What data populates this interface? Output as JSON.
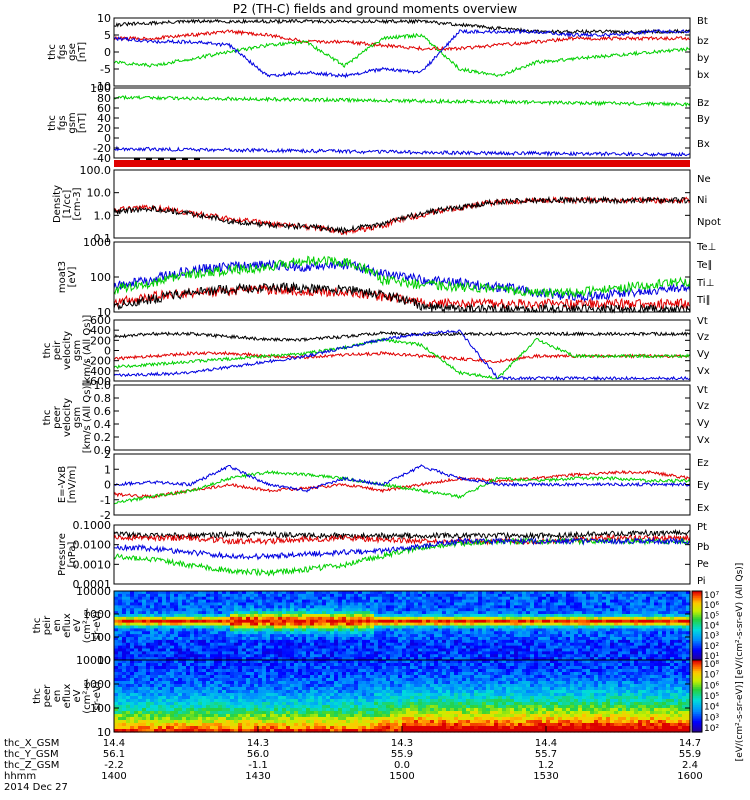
{
  "title": "P2 (TH-C) fields and ground moments overview",
  "colors": {
    "black": "#000000",
    "red": "#e00000",
    "green": "#00d000",
    "blue": "#0000e0"
  },
  "chart_data": [
    {
      "type": "line",
      "ylabel": [
        "thc",
        "fgs",
        "gse",
        "[nT]"
      ],
      "ylim": [
        -10,
        10
      ],
      "ticks": [
        "10",
        "5",
        "0",
        "-5",
        "-10"
      ],
      "series": [
        {
          "name": "Bt",
          "color": "black",
          "values": [
            8,
            8.5,
            9,
            9,
            9,
            9,
            9,
            9,
            9,
            8,
            7,
            6,
            6,
            6,
            6,
            6
          ]
        },
        {
          "name": "bz",
          "color": "red",
          "values": [
            4,
            4,
            5,
            6,
            5,
            3,
            3,
            2,
            1,
            1,
            2,
            3,
            4,
            4,
            4,
            4
          ]
        },
        {
          "name": "by",
          "color": "green",
          "values": [
            -3,
            -4,
            -2,
            0,
            2,
            3,
            -4,
            4,
            5,
            -5,
            -7,
            -3,
            -2,
            -1,
            0,
            1
          ]
        },
        {
          "name": "bx",
          "color": "blue",
          "values": [
            4,
            3,
            3,
            2,
            -7,
            -6,
            -7,
            -5,
            -6,
            6,
            6,
            6,
            5,
            5,
            6,
            6
          ]
        }
      ]
    },
    {
      "type": "line",
      "ylabel": [
        "thc",
        "fgs",
        "gsm",
        "[nT]"
      ],
      "ylim": [
        -50,
        100
      ],
      "ticks": [
        "100",
        "80",
        "60",
        "40",
        "20",
        "0",
        "-20",
        "-40"
      ],
      "series": [
        {
          "name": "Bz",
          "color": "red",
          "values": []
        },
        {
          "name": "By",
          "color": "green",
          "values": [
            80,
            79,
            78,
            77,
            76,
            75,
            74,
            73,
            72,
            71,
            70,
            69,
            68,
            67,
            66,
            65
          ]
        },
        {
          "name": "Bx",
          "color": "blue",
          "values": [
            -30,
            -31,
            -32,
            -33,
            -34,
            -35,
            -36,
            -37,
            -38,
            -39,
            -40,
            -40,
            -41,
            -41,
            -42,
            -42
          ]
        }
      ]
    },
    {
      "type": "line",
      "log": true,
      "ylabel": [
        "Density",
        "[1/cc]",
        "[cm-3]"
      ],
      "ylim": [
        0.05,
        200
      ],
      "ticks": [
        "100.0",
        "10.0",
        "1.0",
        "0.1"
      ],
      "series": [
        {
          "name": "Ne",
          "color": "red",
          "values": [
            1.5,
            2,
            1,
            0.5,
            0.3,
            0.2,
            0.1,
            0.2,
            0.8,
            2,
            4,
            5,
            5,
            5,
            5,
            5
          ]
        },
        {
          "name": "Ni",
          "color": "black",
          "values": [
            1.2,
            1.8,
            0.9,
            0.4,
            0.25,
            0.2,
            0.12,
            0.25,
            0.9,
            2,
            4,
            5,
            5,
            5,
            5,
            5
          ]
        },
        {
          "name": "Npot",
          "color": "blue",
          "values": []
        }
      ]
    },
    {
      "type": "line",
      "log": true,
      "ylabel": [
        "moat3",
        "[eV]"
      ],
      "ylim": [
        10,
        1500
      ],
      "ticks": [
        "1000",
        "100",
        "10"
      ],
      "series": [
        {
          "name": "Te⊥",
          "color": "red",
          "values": [
            20,
            30,
            40,
            45,
            50,
            45,
            40,
            30,
            20,
            18,
            18,
            18,
            18,
            18,
            18,
            18
          ]
        },
        {
          "name": "Te∥",
          "color": "black",
          "values": [
            15,
            25,
            40,
            50,
            60,
            55,
            50,
            35,
            15,
            12,
            12,
            12,
            12,
            12,
            12,
            12
          ]
        },
        {
          "name": "Ti⊥",
          "color": "blue",
          "values": [
            60,
            100,
            200,
            250,
            300,
            250,
            300,
            150,
            100,
            80,
            60,
            40,
            30,
            35,
            45,
            60
          ]
        },
        {
          "name": "Ti∥",
          "color": "green",
          "values": [
            50,
            80,
            150,
            200,
            250,
            400,
            350,
            100,
            70,
            60,
            50,
            40,
            40,
            50,
            70,
            90
          ]
        }
      ]
    },
    {
      "type": "line",
      "ylabel": [
        "thc",
        "peir",
        "velocity",
        "gsm",
        "[km/s (All Qs)]"
      ],
      "ylim": [
        -450,
        650
      ],
      "ticks": [
        "600",
        "400",
        "200",
        "0",
        "-200",
        "-400",
        "-600"
      ],
      "series": [
        {
          "name": "Vt",
          "color": "black",
          "values": [
            350,
            400,
            400,
            350,
            300,
            300,
            350,
            420,
            380,
            400,
            400,
            400,
            400,
            400,
            400,
            400
          ]
        },
        {
          "name": "Vz",
          "color": "red",
          "values": [
            -50,
            0,
            50,
            50,
            0,
            -20,
            20,
            50,
            0,
            -50,
            -100,
            0,
            0,
            0,
            0,
            0
          ]
        },
        {
          "name": "Vy",
          "color": "green",
          "values": [
            -200,
            -150,
            -100,
            -50,
            0,
            50,
            150,
            300,
            200,
            -300,
            -400,
            300,
            0,
            0,
            0,
            0
          ]
        },
        {
          "name": "Vx",
          "color": "blue",
          "values": [
            -350,
            -330,
            -300,
            -200,
            -100,
            0,
            150,
            300,
            400,
            450,
            -400,
            -400,
            -400,
            -400,
            -400,
            -400
          ]
        }
      ]
    },
    {
      "type": "line",
      "ylabel": [
        "thc",
        "peer",
        "velocity",
        "gsm",
        "[km/s (All Qs)]"
      ],
      "ylim": [
        0,
        1
      ],
      "ticks": [
        "1.0",
        "0.8",
        "0.6",
        "0.4",
        "0.2",
        "0.0"
      ],
      "series": [
        {
          "name": "Vt",
          "color": "black",
          "values": []
        },
        {
          "name": "Vz",
          "color": "red",
          "values": []
        },
        {
          "name": "Vy",
          "color": "green",
          "values": []
        },
        {
          "name": "Vx",
          "color": "blue",
          "values": []
        }
      ]
    },
    {
      "type": "line",
      "ylabel": [
        "E=-VxB",
        "[mV/m]"
      ],
      "ylim": [
        -2.5,
        2.5
      ],
      "ticks": [
        "2",
        "1",
        "0",
        "-1",
        "-2"
      ],
      "series": [
        {
          "name": "Ez",
          "color": "red",
          "values": [
            -0.8,
            -1,
            -0.5,
            0,
            -0.5,
            -0.3,
            0,
            -0.5,
            0,
            0.5,
            0.3,
            0.5,
            0.8,
            1,
            1,
            0.5
          ]
        },
        {
          "name": "Ey",
          "color": "green",
          "values": [
            -1.5,
            -1,
            -0.5,
            0.5,
            1,
            0.8,
            0.5,
            0,
            -0.5,
            -1,
            0.5,
            0.3,
            0.5,
            0.5,
            0.3,
            0.3
          ]
        },
        {
          "name": "Ex",
          "color": "blue",
          "values": [
            0,
            0.2,
            0,
            1.5,
            0,
            -0.5,
            0.5,
            0,
            1.5,
            0.5,
            0,
            0,
            0,
            0,
            0,
            0
          ]
        }
      ]
    },
    {
      "type": "line",
      "log": true,
      "ylabel": [
        "Pressure",
        "[nPa]"
      ],
      "ylim": [
        0.0001,
        0.15
      ],
      "ticks": [
        "0.1000",
        "0.0100",
        "0.0010",
        "0.0001"
      ],
      "series": [
        {
          "name": "Pt",
          "color": "black",
          "values": [
            0.05,
            0.04,
            0.04,
            0.045,
            0.045,
            0.04,
            0.04,
            0.04,
            0.04,
            0.04,
            0.04,
            0.04,
            0.045,
            0.05,
            0.055,
            0.06
          ]
        },
        {
          "name": "Pb",
          "color": "red",
          "values": [
            0.03,
            0.03,
            0.03,
            0.02,
            0.02,
            0.025,
            0.03,
            0.025,
            0.02,
            0.02,
            0.02,
            0.02,
            0.025,
            0.03,
            0.03,
            0.03
          ]
        },
        {
          "name": "Pe",
          "color": "green",
          "values": [
            0.003,
            0.002,
            0.001,
            0.0005,
            0.0004,
            0.0006,
            0.001,
            0.003,
            0.008,
            0.015,
            0.02,
            0.02,
            0.02,
            0.02,
            0.02,
            0.02
          ]
        },
        {
          "name": "Pi",
          "color": "blue",
          "values": [
            0.01,
            0.008,
            0.005,
            0.003,
            0.003,
            0.004,
            0.005,
            0.006,
            0.01,
            0.02,
            0.02,
            0.02,
            0.02,
            0.02,
            0.02,
            0.02
          ]
        }
      ]
    },
    {
      "type": "heatmap",
      "log": true,
      "ylabel": [
        "thc",
        "peir",
        "en",
        "eflux",
        "eV",
        "(cm²-s-",
        "sr-eV)"
      ],
      "ylim": [
        5,
        20000
      ],
      "ticks": [
        "10000",
        "1000",
        "100",
        "10"
      ]
    },
    {
      "type": "heatmap",
      "log": true,
      "ylabel": [
        "thc",
        "peer",
        "en",
        "eflux",
        "eV",
        "(cm²-s-",
        "sr-eV)"
      ],
      "ylim": [
        5,
        20000
      ],
      "ticks": [
        "10000",
        "1000",
        "100",
        "10"
      ]
    }
  ],
  "colorbar": {
    "ticks": [
      "10⁷",
      "10⁶",
      "10⁵",
      "10⁴",
      "10³",
      "10²",
      "10¹"
    ],
    "ticks2": [
      "10⁸",
      "10⁷",
      "10⁶",
      "10⁵",
      "10⁴",
      "10³",
      "10²"
    ],
    "label": "[eV/(cm²-s-sr-eV)] [eV/(cm²-s-sr-eV) (All Qs)]"
  },
  "xaxis": {
    "rows": [
      {
        "label": "thc_X_GSM",
        "values": [
          "14.4",
          "14.3",
          "14.3",
          "14.4",
          "14.7"
        ]
      },
      {
        "label": "thc_Y_GSM",
        "values": [
          "56.1",
          "56.0",
          "55.9",
          "55.7",
          "55.9"
        ]
      },
      {
        "label": "thc_Z_GSM",
        "values": [
          "-2.2",
          "-1.1",
          "0.0",
          "1.2",
          "2.4"
        ]
      },
      {
        "label": "hhmm",
        "values": [
          "1400",
          "1430",
          "1500",
          "1530",
          "1600"
        ]
      }
    ],
    "date": "2014 Dec 27"
  }
}
